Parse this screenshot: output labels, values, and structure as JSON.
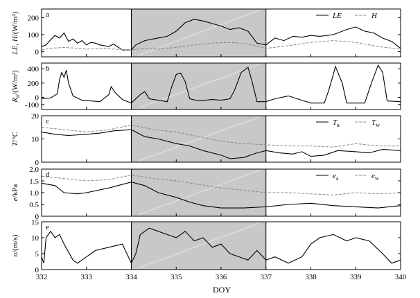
{
  "figure": {
    "xlabel": "DOY",
    "shaded_interval": [
      334,
      337
    ],
    "shade_color": "#c8c8c8",
    "x_ticks": [
      332,
      333,
      334,
      335,
      336,
      337,
      338,
      339,
      340
    ],
    "x_tick_labels": [
      "332",
      "333",
      "334",
      "335",
      "336",
      "337",
      "338",
      "339",
      "340"
    ]
  },
  "chart_data": [
    {
      "type": "line",
      "panel_label": "a",
      "ylabel_main": "LE, H",
      "ylabel_unit": "/(W/m²)",
      "yticks": [
        0,
        100,
        200
      ],
      "ylim": [
        -30,
        250
      ],
      "legend": "top-right",
      "series": [
        {
          "name": "LE",
          "style": "solid",
          "color": "#000000",
          "points": [
            [
              332.0,
              30
            ],
            [
              332.1,
              40
            ],
            [
              332.2,
              70
            ],
            [
              332.3,
              95
            ],
            [
              332.4,
              80
            ],
            [
              332.5,
              110
            ],
            [
              332.6,
              60
            ],
            [
              332.7,
              75
            ],
            [
              332.8,
              50
            ],
            [
              332.9,
              65
            ],
            [
              333.0,
              40
            ],
            [
              333.1,
              55
            ],
            [
              333.2,
              50
            ],
            [
              333.3,
              40
            ],
            [
              333.5,
              30
            ],
            [
              333.6,
              45
            ],
            [
              333.8,
              10
            ],
            [
              334.0,
              10
            ],
            [
              334.1,
              40
            ],
            [
              334.3,
              65
            ],
            [
              334.5,
              75
            ],
            [
              334.8,
              90
            ],
            [
              335.0,
              120
            ],
            [
              335.2,
              170
            ],
            [
              335.4,
              190
            ],
            [
              335.6,
              180
            ],
            [
              335.8,
              165
            ],
            [
              336.0,
              150
            ],
            [
              336.2,
              130
            ],
            [
              336.4,
              140
            ],
            [
              336.6,
              120
            ],
            [
              336.8,
              50
            ],
            [
              337.0,
              40
            ],
            [
              337.2,
              80
            ],
            [
              337.4,
              65
            ],
            [
              337.6,
              90
            ],
            [
              337.8,
              85
            ],
            [
              338.0,
              95
            ],
            [
              338.2,
              90
            ],
            [
              338.5,
              100
            ],
            [
              338.8,
              130
            ],
            [
              339.0,
              145
            ],
            [
              339.2,
              120
            ],
            [
              339.4,
              110
            ],
            [
              339.6,
              80
            ],
            [
              339.8,
              60
            ],
            [
              340.0,
              20
            ]
          ]
        },
        {
          "name": "H",
          "style": "dashed",
          "color": "#888888",
          "points": [
            [
              332.0,
              10
            ],
            [
              332.2,
              20
            ],
            [
              332.5,
              25
            ],
            [
              332.8,
              20
            ],
            [
              333.0,
              15
            ],
            [
              333.3,
              20
            ],
            [
              333.6,
              15
            ],
            [
              334.0,
              10
            ],
            [
              334.3,
              20
            ],
            [
              334.6,
              15
            ],
            [
              335.0,
              25
            ],
            [
              335.4,
              40
            ],
            [
              335.8,
              50
            ],
            [
              336.2,
              55
            ],
            [
              336.6,
              45
            ],
            [
              337.0,
              20
            ],
            [
              337.5,
              35
            ],
            [
              338.0,
              55
            ],
            [
              338.5,
              65
            ],
            [
              339.0,
              55
            ],
            [
              339.5,
              30
            ],
            [
              340.0,
              15
            ]
          ]
        }
      ]
    },
    {
      "type": "line",
      "panel_label": "b",
      "ylabel_main": "R",
      "ylabel_sub": "n",
      "ylabel_unit": "/(W/m²)",
      "yticks": [
        -100,
        0,
        200,
        400
      ],
      "ylim": [
        -170,
        480
      ],
      "legend": "none",
      "series": [
        {
          "style": "solid",
          "color": "#000000",
          "points": [
            [
              332.0,
              -20
            ],
            [
              332.2,
              -10
            ],
            [
              332.35,
              50
            ],
            [
              332.4,
              250
            ],
            [
              332.45,
              350
            ],
            [
              332.5,
              280
            ],
            [
              332.55,
              380
            ],
            [
              332.6,
              200
            ],
            [
              332.7,
              20
            ],
            [
              332.9,
              -40
            ],
            [
              333.3,
              -60
            ],
            [
              333.5,
              40
            ],
            [
              333.55,
              150
            ],
            [
              333.65,
              60
            ],
            [
              333.8,
              -30
            ],
            [
              334.0,
              -80
            ],
            [
              334.2,
              40
            ],
            [
              334.3,
              80
            ],
            [
              334.4,
              -20
            ],
            [
              334.8,
              -60
            ],
            [
              334.9,
              150
            ],
            [
              335.0,
              320
            ],
            [
              335.1,
              340
            ],
            [
              335.2,
              220
            ],
            [
              335.3,
              -20
            ],
            [
              335.5,
              -50
            ],
            [
              335.8,
              -30
            ],
            [
              336.0,
              -40
            ],
            [
              336.2,
              -20
            ],
            [
              336.3,
              100
            ],
            [
              336.45,
              350
            ],
            [
              336.6,
              420
            ],
            [
              336.7,
              200
            ],
            [
              336.8,
              -60
            ],
            [
              337.0,
              -60
            ],
            [
              337.2,
              -20
            ],
            [
              337.5,
              20
            ],
            [
              337.8,
              -40
            ],
            [
              338.0,
              -80
            ],
            [
              338.3,
              -80
            ],
            [
              338.4,
              100
            ],
            [
              338.55,
              430
            ],
            [
              338.7,
              200
            ],
            [
              338.8,
              -80
            ],
            [
              339.2,
              -80
            ],
            [
              339.35,
              200
            ],
            [
              339.5,
              450
            ],
            [
              339.6,
              350
            ],
            [
              339.7,
              -50
            ],
            [
              340.0,
              -60
            ]
          ]
        }
      ]
    },
    {
      "type": "line",
      "panel_label": "c",
      "ylabel_main": "T",
      "ylabel_unit": "/°C",
      "yticks": [
        0,
        10,
        20
      ],
      "ylim": [
        0,
        20
      ],
      "legend": "top-right",
      "series": [
        {
          "name": "Ta",
          "name_main": "T",
          "name_sub": "a",
          "style": "solid",
          "color": "#000000",
          "points": [
            [
              332.0,
              13
            ],
            [
              332.3,
              12
            ],
            [
              332.6,
              11.5
            ],
            [
              333.0,
              12
            ],
            [
              333.3,
              12.5
            ],
            [
              333.6,
              13.5
            ],
            [
              334.0,
              14
            ],
            [
              334.3,
              11
            ],
            [
              334.6,
              10
            ],
            [
              335.0,
              8
            ],
            [
              335.3,
              7
            ],
            [
              335.6,
              5
            ],
            [
              336.0,
              3
            ],
            [
              336.2,
              1.5
            ],
            [
              336.5,
              2
            ],
            [
              336.8,
              4
            ],
            [
              337.0,
              5
            ],
            [
              337.3,
              4
            ],
            [
              337.6,
              3.5
            ],
            [
              337.8,
              4.5
            ],
            [
              338.0,
              2.5
            ],
            [
              338.3,
              3
            ],
            [
              338.6,
              5
            ],
            [
              339.0,
              4.5
            ],
            [
              339.3,
              4
            ],
            [
              339.6,
              5.5
            ],
            [
              340.0,
              5
            ]
          ]
        },
        {
          "name": "Tw",
          "name_main": "T",
          "name_sub": "w",
          "style": "dashed",
          "color": "#888888",
          "points": [
            [
              332.0,
              15
            ],
            [
              332.5,
              14
            ],
            [
              333.0,
              13
            ],
            [
              333.5,
              14
            ],
            [
              334.0,
              16
            ],
            [
              334.5,
              14
            ],
            [
              335.0,
              13
            ],
            [
              335.5,
              11
            ],
            [
              336.0,
              9
            ],
            [
              336.5,
              8
            ],
            [
              337.0,
              7.5
            ],
            [
              337.5,
              7
            ],
            [
              338.0,
              7
            ],
            [
              338.5,
              6.5
            ],
            [
              339.0,
              8
            ],
            [
              339.5,
              7
            ],
            [
              340.0,
              7
            ]
          ]
        }
      ]
    },
    {
      "type": "line",
      "panel_label": "d",
      "ylabel_main": "e",
      "ylabel_unit": "/kPa",
      "yticks": [
        0,
        0.5,
        1.0,
        1.5,
        2.0
      ],
      "ytick_labels": [
        "0",
        "0.5",
        "1.0",
        "1.5",
        "2.0"
      ],
      "ylim": [
        0,
        2.0
      ],
      "legend": "top-right",
      "series": [
        {
          "name": "ea",
          "name_main": "e",
          "name_sub": "a",
          "style": "solid",
          "color": "#000000",
          "points": [
            [
              332.0,
              1.4
            ],
            [
              332.3,
              1.3
            ],
            [
              332.5,
              1.0
            ],
            [
              332.8,
              0.95
            ],
            [
              333.0,
              1.0
            ],
            [
              333.5,
              1.2
            ],
            [
              334.0,
              1.45
            ],
            [
              334.3,
              1.3
            ],
            [
              334.6,
              1.0
            ],
            [
              335.0,
              0.8
            ],
            [
              335.3,
              0.6
            ],
            [
              335.6,
              0.45
            ],
            [
              336.0,
              0.35
            ],
            [
              336.5,
              0.35
            ],
            [
              337.0,
              0.4
            ],
            [
              337.5,
              0.5
            ],
            [
              338.0,
              0.55
            ],
            [
              338.5,
              0.45
            ],
            [
              339.0,
              0.4
            ],
            [
              339.5,
              0.35
            ],
            [
              340.0,
              0.45
            ]
          ]
        },
        {
          "name": "ew",
          "name_main": "e",
          "name_sub": "w",
          "style": "dashed",
          "color": "#888888",
          "points": [
            [
              332.0,
              1.7
            ],
            [
              332.5,
              1.6
            ],
            [
              333.0,
              1.5
            ],
            [
              333.5,
              1.55
            ],
            [
              334.0,
              1.75
            ],
            [
              334.5,
              1.6
            ],
            [
              335.0,
              1.5
            ],
            [
              335.5,
              1.35
            ],
            [
              336.0,
              1.2
            ],
            [
              336.5,
              1.1
            ],
            [
              337.0,
              1.0
            ],
            [
              337.5,
              1.0
            ],
            [
              338.0,
              0.95
            ],
            [
              338.5,
              0.9
            ],
            [
              339.0,
              1.0
            ],
            [
              339.5,
              0.95
            ],
            [
              340.0,
              1.0
            ]
          ]
        }
      ]
    },
    {
      "type": "line",
      "panel_label": "e",
      "ylabel_main": "u",
      "ylabel_unit": "/(m/s)",
      "yticks": [
        0,
        5,
        10,
        15
      ],
      "ylim": [
        0,
        15
      ],
      "legend": "none",
      "series": [
        {
          "style": "solid",
          "color": "#000000",
          "points": [
            [
              332.0,
              4
            ],
            [
              332.05,
              2
            ],
            [
              332.1,
              10
            ],
            [
              332.2,
              12
            ],
            [
              332.3,
              10
            ],
            [
              332.4,
              11
            ],
            [
              332.5,
              8
            ],
            [
              332.7,
              3
            ],
            [
              332.8,
              2
            ],
            [
              333.0,
              4
            ],
            [
              333.2,
              6
            ],
            [
              333.5,
              7
            ],
            [
              333.8,
              8
            ],
            [
              334.0,
              2
            ],
            [
              334.1,
              5
            ],
            [
              334.2,
              11
            ],
            [
              334.4,
              13
            ],
            [
              334.6,
              12
            ],
            [
              334.8,
              11
            ],
            [
              335.0,
              10
            ],
            [
              335.2,
              12
            ],
            [
              335.4,
              9
            ],
            [
              335.6,
              10
            ],
            [
              335.8,
              7
            ],
            [
              336.0,
              8
            ],
            [
              336.2,
              5
            ],
            [
              336.4,
              4
            ],
            [
              336.6,
              3
            ],
            [
              336.8,
              6
            ],
            [
              337.0,
              3
            ],
            [
              337.2,
              4
            ],
            [
              337.5,
              2
            ],
            [
              337.8,
              4
            ],
            [
              338.0,
              8
            ],
            [
              338.2,
              10
            ],
            [
              338.5,
              11
            ],
            [
              338.8,
              9
            ],
            [
              339.0,
              10
            ],
            [
              339.3,
              9
            ],
            [
              339.6,
              5
            ],
            [
              339.8,
              2
            ],
            [
              340.0,
              3
            ]
          ]
        }
      ]
    }
  ]
}
